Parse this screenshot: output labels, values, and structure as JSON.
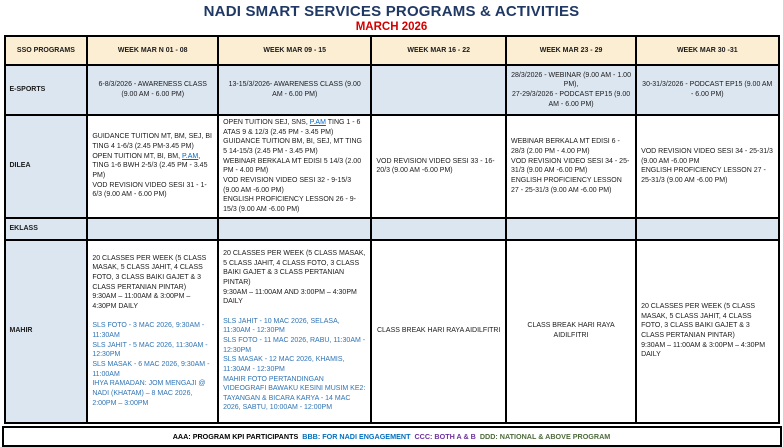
{
  "title": "NADI SMART SERVICES PROGRAMS & ACTIVITIES",
  "subtitle": "MARCH 2026",
  "colors": {
    "title_color": "#1F3864",
    "subtitle_color": "#D40000",
    "header_bg": "#FBEED3",
    "band_bg": "#DCE6F1",
    "blue_text": "#2E74B5",
    "link_color": "#0563C1"
  },
  "table": {
    "columns": [
      "SSO PROGRAMS",
      "WEEK MAR N 01 - 08",
      "WEEK MAR  09 - 15",
      "WEEK MAR 16 - 22",
      "WEEK MAR  23 - 29",
      "WEEK MAR 30 -31"
    ],
    "rows": [
      {
        "label": "E-SPORTS",
        "height": 50,
        "cells": [
          {
            "bg": "band",
            "h": "center",
            "v": "middle",
            "paras": [
              "6-8/3/2026 - AWARENESS CLASS (9.00 AM - 6.00 PM)"
            ]
          },
          {
            "bg": "band",
            "h": "center",
            "v": "middle",
            "paras": [
              "13-15/3/2026- AWARENESS CLASS (9.00 AM - 6.00 PM)"
            ]
          },
          {
            "bg": "band",
            "h": "center",
            "v": "middle",
            "paras": []
          },
          {
            "bg": "band",
            "h": "center",
            "v": "middle",
            "paras": [
              "28/3/2026 - WEBINAR (9.00 AM - 1.00 PM),",
              "27-29/3/2026 - PODCAST EP15 (9.00 AM - 6.00 PM)"
            ]
          },
          {
            "bg": "band",
            "h": "center",
            "v": "middle",
            "paras": [
              "30-31/3/2026 - PODCAST EP15 (9.00 AM - 6.00 PM)"
            ]
          }
        ]
      },
      {
        "label": "DILEA",
        "height": 96,
        "cells": [
          {
            "bg": "white",
            "h": "left",
            "v": "middle",
            "paras": [
              "GUIDANCE TUITION MT, BM, SEJ, BI TING 4 1-6/3 (2.45 PM-3.45 PM)",
              {
                "segments": [
                  {
                    "text": "OPEN TUITION MT, BI, BM, "
                  },
                  {
                    "text": "P.AM",
                    "link": true
                  },
                  {
                    "text": ", TING 1-6 BWH 2-5/3 (2.45 PM - 3.45 PM)"
                  }
                ]
              },
              "VOD REVISION VIDEO SESI 31 - 1-6/3 (9.00 AM - 6.00 PM)"
            ]
          },
          {
            "bg": "white",
            "h": "left",
            "v": "middle",
            "paras": [
              {
                "segments": [
                  {
                    "text": "OPEN TUITION SEJ, SNS, "
                  },
                  {
                    "text": "P.AM",
                    "link": true
                  },
                  {
                    "text": " TING 1 - 6 ATAS 9 & 12/3 (2.45 PM - 3.45 PM)"
                  }
                ]
              },
              "GUIDANCE TUITION BM, BI, SEJ, MT TING 5 14-15/3 (2.45 PM - 3.45 PM)",
              "WEBINAR BERKALA MT EDISI 5 14/3 (2.00 PM - 4.00 PM)",
              "VOD REVISION VIDEO SESI 32 - 9-15/3 (9.00 AM -6.00 PM)",
              "ENGLISH PROFICIENCY LESSON 26 - 9-15/3 (9.00 AM -6.00 PM)"
            ]
          },
          {
            "bg": "white",
            "h": "left",
            "v": "middle",
            "paras": [
              "VOD REVISION VIDEO SESI 33 - 16-20/3 (9.00 AM -6.00 PM)"
            ]
          },
          {
            "bg": "white",
            "h": "left",
            "v": "middle",
            "paras": [
              "WEBINAR BERKALA MT EDISI 6 - 28/3 (2.00 PM - 4.00 PM)",
              "VOD REVISION VIDEO SESI 34 - 25-31/3 (9.00 AM -6.00 PM)",
              "ENGLISH PROFICIENCY LESSON 27 - 25-31/3 (9.00 AM -6.00 PM)"
            ]
          },
          {
            "bg": "white",
            "h": "left",
            "v": "middle",
            "paras": [
              "VOD REVISION VIDEO SESI 34 - 25-31/3 (9.00 AM -6.00 PM",
              "ENGLISH PROFICIENCY LESSON 27 - 25-31/3 (9.00 AM -6.00 PM)"
            ]
          }
        ]
      },
      {
        "label": "EKLASS",
        "height": 22,
        "cells": [
          {
            "bg": "band",
            "h": "left",
            "v": "middle",
            "paras": []
          },
          {
            "bg": "band",
            "h": "left",
            "v": "middle",
            "paras": []
          },
          {
            "bg": "band",
            "h": "left",
            "v": "middle",
            "paras": []
          },
          {
            "bg": "band",
            "h": "left",
            "v": "middle",
            "paras": []
          },
          {
            "bg": "band",
            "h": "left",
            "v": "middle",
            "paras": []
          }
        ]
      },
      {
        "label": "MAHIR",
        "height": 183,
        "cells": [
          {
            "bg": "white",
            "h": "left",
            "v": "top",
            "paras": [
              "20 CLASSES PER WEEK (5 CLASS MASAK, 5 CLASS JAHIT, 4 CLASS FOTO, 3 CLASS BAIKI GAJET & 3 CLASS PERTANIAN PINTAR)",
              "9:30AM – 11:00AM & 3:00PM – 4:30PM DAILY",
              "",
              {
                "color": "blue",
                "text": "SLS FOTO - 3 MAC 2026, 9:30AM - 11:30AM"
              },
              {
                "color": "blue",
                "text": "SLS JAHIT - 5 MAC 2026, 11:30AM - 12:30PM"
              },
              {
                "color": "blue",
                "text": "SLS MASAK - 6 MAC 2026, 9:30AM - 11:00AM"
              },
              {
                "color": "blue",
                "text": "IHYA RAMADAN: JOM MENGAJI @ NADI (KHATAM) – 8 MAC 2026, 2:00PM – 3:00PM"
              }
            ]
          },
          {
            "bg": "white",
            "h": "left",
            "v": "top",
            "paras": [
              "20 CLASSES PER WEEK (5 CLASS MASAK, 5 CLASS JAHIT, 4 CLASS FOTO, 3 CLASS BAIKI GAJET & 3 CLASS PERTANIAN PINTAR)",
              "9:30AM – 11:00AM AND 3:00PM – 4:30PM DAILY",
              "",
              {
                "color": "blue",
                "text": "SLS JAHIT - 10 MAC 2026, SELASA, 11:30AM - 12:30PM"
              },
              {
                "color": "blue",
                "text": "SLS FOTO - 11 MAC 2026, RABU, 11:30AM - 12:30PM"
              },
              {
                "color": "blue",
                "text": "SLS MASAK - 12 MAC 2026, KHAMIS, 11:30AM - 12:30PM"
              },
              {
                "color": "blue",
                "text": "MAHIR FOTO PERTANDINGAN VIDEOGRAFI BAWAKU KESINI MUSIM KE2: TAYANGAN & BICARA KARYA - 14 MAC 2026, SABTU, 10:00AM - 12:00PM"
              }
            ]
          },
          {
            "bg": "white",
            "h": "center",
            "v": "middle",
            "paras": [
              "CLASS BREAK HARI RAYA AIDILFITRI"
            ]
          },
          {
            "bg": "white",
            "h": "center",
            "v": "middle",
            "paras": [
              "CLASS BREAK HARI RAYA AIDILFITRI"
            ]
          },
          {
            "bg": "white",
            "h": "left",
            "v": "middle",
            "paras": [
              "20 CLASSES PER WEEK (5 CLASS MASAK, 5 CLASS JAHIT, 4 CLASS FOTO, 3 CLASS BAIKI GAJET & 3 CLASS PERTANIAN PINTAR)",
              "9:30AM – 11:00AM & 3:00PM – 4:30PM DAILY"
            ]
          }
        ]
      }
    ],
    "column_widths_pct": [
      10.7,
      16.9,
      19.8,
      17.4,
      16.8,
      18.4
    ]
  },
  "footer": {
    "segments": [
      {
        "text": "AAA: PROGRAM KPI PARTICIPANTS ",
        "color": "#000000"
      },
      {
        "text": "BBB: FOR NADI ENGAGEMENT ",
        "color": "#0070C0"
      },
      {
        "text": "CCC: BOTH A & B ",
        "color": "#7030A0"
      },
      {
        "text": "DDD: NATIONAL & ABOVE PROGRAM",
        "color": "#4E6B3C"
      }
    ]
  }
}
